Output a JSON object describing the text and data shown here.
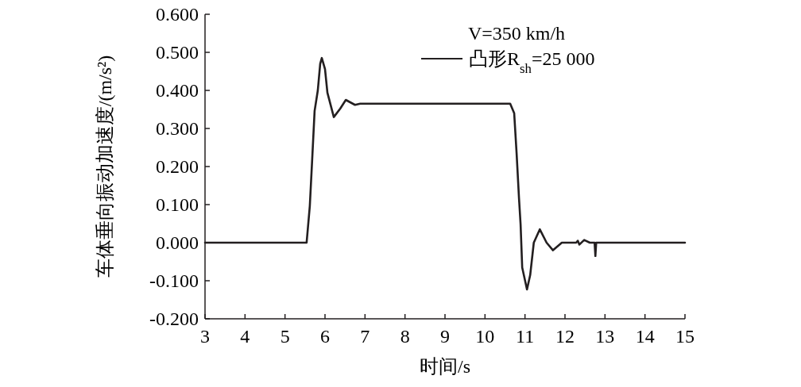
{
  "chart_data": {
    "type": "line",
    "xlabel": "时间/s",
    "ylabel": "车体垂向振动加速度/(m/s²)",
    "legend_title": "V=350 km/h",
    "legend": "top right",
    "grid": false,
    "marker": "none",
    "line_style": "solid",
    "xlim": [
      3,
      15
    ],
    "xticks": [
      3,
      4,
      5,
      6,
      7,
      8,
      9,
      10,
      11,
      12,
      13,
      14,
      15
    ],
    "ylim": [
      -0.2,
      0.6
    ],
    "yticks": [
      {
        "value": -0.2,
        "label": "-0.200"
      },
      {
        "value": -0.1,
        "label": "-0.100"
      },
      {
        "value": 0,
        "label": "0.000"
      },
      {
        "value": 0.1,
        "label": "0.100"
      },
      {
        "value": 0.2,
        "label": "0.200"
      },
      {
        "value": 0.3,
        "label": "0.300"
      },
      {
        "value": 0.4,
        "label": "0.400"
      },
      {
        "value": 0.5,
        "label": "0.500"
      },
      {
        "value": 0.6,
        "label": "0.600"
      }
    ],
    "series": [
      {
        "name": "凸形R$_{sh}$=25 000",
        "color": "#231f20",
        "x": [
          3,
          5.54,
          5.62,
          5.68,
          5.74,
          5.82,
          5.88,
          5.92,
          6.0,
          6.06,
          6.22,
          6.38,
          6.52,
          6.75,
          6.88,
          7.2,
          10.63,
          10.73,
          10.79,
          10.85,
          10.89,
          10.93,
          11.05,
          11.13,
          11.22,
          11.37,
          11.54,
          11.7,
          11.92,
          12.28,
          12.32,
          12.36,
          12.48,
          12.62,
          12.74,
          12.76,
          12.78,
          15
        ],
        "values": [
          0,
          0,
          0.096,
          0.22,
          0.346,
          0.4,
          0.47,
          0.485,
          0.456,
          0.394,
          0.33,
          0.352,
          0.375,
          0.362,
          0.365,
          0.365,
          0.365,
          0.34,
          0.235,
          0.117,
          0.048,
          -0.065,
          -0.123,
          -0.085,
          0,
          0.035,
          0,
          -0.02,
          0,
          0,
          0.005,
          -0.005,
          0.007,
          0,
          0,
          -0.035,
          0,
          0
        ]
      }
    ]
  }
}
